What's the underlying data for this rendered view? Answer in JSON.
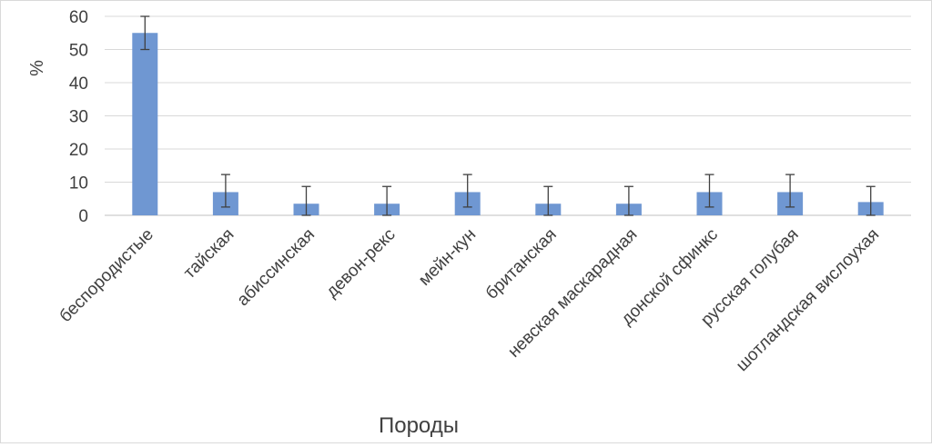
{
  "chart_data": {
    "type": "bar",
    "title": "",
    "xlabel": "Породы",
    "ylabel": "%",
    "ylim": [
      0,
      60
    ],
    "yticks": [
      0,
      10,
      20,
      30,
      40,
      50,
      60
    ],
    "grid": true,
    "legend": "none",
    "bar_color": "#6f97d2",
    "error_bar_color": "#404040",
    "categories": [
      "беспородистые",
      "тайская",
      "абиссинская",
      "девон-рекс",
      "мейн-кун",
      "британская",
      "невская маскарадная",
      "донской сфинкс",
      "русская голубая",
      "шотландская вислоухая"
    ],
    "values": [
      55,
      7,
      3.5,
      3.5,
      7,
      3.5,
      3.5,
      7,
      7,
      4
    ],
    "error_low": [
      50,
      2.5,
      0,
      0,
      2.5,
      0,
      0,
      2.5,
      2.5,
      0
    ],
    "error_high": [
      60,
      12.3,
      8.7,
      8.7,
      12.3,
      8.7,
      8.7,
      12.3,
      12.3,
      8.7
    ]
  }
}
